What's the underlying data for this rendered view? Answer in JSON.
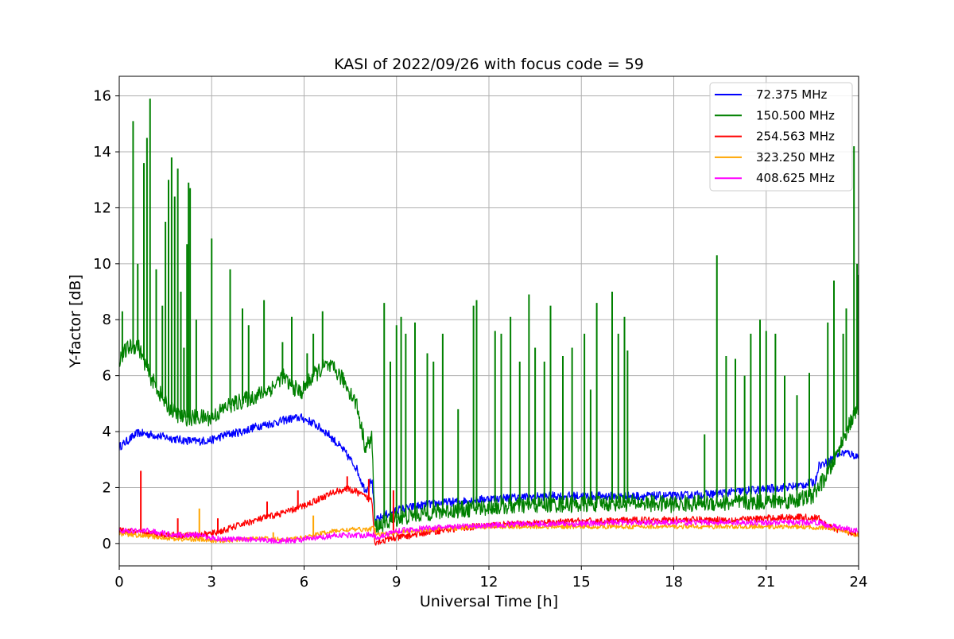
{
  "chart_data": {
    "type": "line",
    "title": "KASI of 2022/09/26 with focus code = 59",
    "xlabel": "Universal Time [h]",
    "ylabel": "Y-factor [dB]",
    "xlim": [
      0,
      24
    ],
    "ylim": [
      -0.8,
      16.7
    ],
    "xticks": [
      0,
      3,
      6,
      9,
      12,
      15,
      18,
      21,
      24
    ],
    "yticks": [
      0,
      2,
      4,
      6,
      8,
      10,
      12,
      14,
      16
    ],
    "grid": true,
    "legend_position": "top-right",
    "series": [
      {
        "name": "72.375 MHz",
        "color": "#0000ff",
        "band": 0.15,
        "points": [
          [
            0,
            3.45
          ],
          [
            0.3,
            3.7
          ],
          [
            0.6,
            3.95
          ],
          [
            1.0,
            3.9
          ],
          [
            1.5,
            3.8
          ],
          [
            2.0,
            3.7
          ],
          [
            2.5,
            3.65
          ],
          [
            3.0,
            3.7
          ],
          [
            3.5,
            3.9
          ],
          [
            4.0,
            4.0
          ],
          [
            4.5,
            4.2
          ],
          [
            5.0,
            4.3
          ],
          [
            5.5,
            4.45
          ],
          [
            5.9,
            4.5
          ],
          [
            6.3,
            4.3
          ],
          [
            6.8,
            3.9
          ],
          [
            7.3,
            3.3
          ],
          [
            7.7,
            2.7
          ],
          [
            7.9,
            2.1
          ],
          [
            8.0,
            1.9
          ],
          [
            8.2,
            2.3
          ],
          [
            8.3,
            0.8
          ],
          [
            8.6,
            1.0
          ],
          [
            9.0,
            1.2
          ],
          [
            10.0,
            1.4
          ],
          [
            11.0,
            1.5
          ],
          [
            12.0,
            1.6
          ],
          [
            13.0,
            1.65
          ],
          [
            14.0,
            1.7
          ],
          [
            15.0,
            1.7
          ],
          [
            16.0,
            1.7
          ],
          [
            17.0,
            1.7
          ],
          [
            18.0,
            1.7
          ],
          [
            19.0,
            1.75
          ],
          [
            20.0,
            1.85
          ],
          [
            21.0,
            1.95
          ],
          [
            22.0,
            2.05
          ],
          [
            22.6,
            2.2
          ],
          [
            22.7,
            2.8
          ],
          [
            23.0,
            2.9
          ],
          [
            23.3,
            3.2
          ],
          [
            23.6,
            3.25
          ],
          [
            24.0,
            3.1
          ]
        ]
      },
      {
        "name": "150.500 MHz",
        "color": "#008000",
        "band": 0.3,
        "points": [
          [
            0,
            6.6
          ],
          [
            0.3,
            7.0
          ],
          [
            0.6,
            7.1
          ],
          [
            1.0,
            6.0
          ],
          [
            1.5,
            5.0
          ],
          [
            2.0,
            4.5
          ],
          [
            2.5,
            4.5
          ],
          [
            3.0,
            4.5
          ],
          [
            3.5,
            4.9
          ],
          [
            4.0,
            5.1
          ],
          [
            4.5,
            5.3
          ],
          [
            5.0,
            5.6
          ],
          [
            5.3,
            6.0
          ],
          [
            5.5,
            5.7
          ],
          [
            5.9,
            5.4
          ],
          [
            6.3,
            6.0
          ],
          [
            6.7,
            6.35
          ],
          [
            7.0,
            6.2
          ],
          [
            7.3,
            5.8
          ],
          [
            7.7,
            5.0
          ],
          [
            8.0,
            3.4
          ],
          [
            8.2,
            3.8
          ],
          [
            8.3,
            0.6
          ],
          [
            9.0,
            0.9
          ],
          [
            10.0,
            1.1
          ],
          [
            11.0,
            1.2
          ],
          [
            12.0,
            1.3
          ],
          [
            13.0,
            1.35
          ],
          [
            14.0,
            1.4
          ],
          [
            15.0,
            1.4
          ],
          [
            16.0,
            1.45
          ],
          [
            17.0,
            1.45
          ],
          [
            18.0,
            1.4
          ],
          [
            19.0,
            1.45
          ],
          [
            20.0,
            1.45
          ],
          [
            21.0,
            1.5
          ],
          [
            22.0,
            1.55
          ],
          [
            22.5,
            1.7
          ],
          [
            23.0,
            2.5
          ],
          [
            23.3,
            3.2
          ],
          [
            23.6,
            4.0
          ],
          [
            24.0,
            4.9
          ]
        ],
        "spikes": [
          [
            0.1,
            8.3
          ],
          [
            0.45,
            15.1
          ],
          [
            0.6,
            10.0
          ],
          [
            0.8,
            13.6
          ],
          [
            0.9,
            14.5
          ],
          [
            1.0,
            15.9
          ],
          [
            1.2,
            9.8
          ],
          [
            1.4,
            8.5
          ],
          [
            1.5,
            11.5
          ],
          [
            1.6,
            13.0
          ],
          [
            1.7,
            13.8
          ],
          [
            1.8,
            12.4
          ],
          [
            1.9,
            13.4
          ],
          [
            2.0,
            9.0
          ],
          [
            2.1,
            7.0
          ],
          [
            2.2,
            10.7
          ],
          [
            2.25,
            12.9
          ],
          [
            2.3,
            12.7
          ],
          [
            2.5,
            8.0
          ],
          [
            3.0,
            10.9
          ],
          [
            3.6,
            9.8
          ],
          [
            4.0,
            8.4
          ],
          [
            4.2,
            7.8
          ],
          [
            4.7,
            8.7
          ],
          [
            5.3,
            7.2
          ],
          [
            5.6,
            8.1
          ],
          [
            6.1,
            6.8
          ],
          [
            6.3,
            7.5
          ],
          [
            6.6,
            8.3
          ],
          [
            8.6,
            8.6
          ],
          [
            8.8,
            6.5
          ],
          [
            9.0,
            7.8
          ],
          [
            9.15,
            8.1
          ],
          [
            9.3,
            7.5
          ],
          [
            9.6,
            7.9
          ],
          [
            10.0,
            6.8
          ],
          [
            10.2,
            6.5
          ],
          [
            10.5,
            7.5
          ],
          [
            11.0,
            4.8
          ],
          [
            11.5,
            8.5
          ],
          [
            11.6,
            8.7
          ],
          [
            12.2,
            7.6
          ],
          [
            12.4,
            7.5
          ],
          [
            12.7,
            8.1
          ],
          [
            13.0,
            6.5
          ],
          [
            13.3,
            8.9
          ],
          [
            13.5,
            7.0
          ],
          [
            13.8,
            6.5
          ],
          [
            14.0,
            8.5
          ],
          [
            14.4,
            6.7
          ],
          [
            14.7,
            7.0
          ],
          [
            15.1,
            7.5
          ],
          [
            15.3,
            5.5
          ],
          [
            15.5,
            8.6
          ],
          [
            16.0,
            9.0
          ],
          [
            16.2,
            7.5
          ],
          [
            16.4,
            8.1
          ],
          [
            16.5,
            6.9
          ],
          [
            19.0,
            3.9
          ],
          [
            19.4,
            10.3
          ],
          [
            19.7,
            6.7
          ],
          [
            20.0,
            6.6
          ],
          [
            20.3,
            6.0
          ],
          [
            20.5,
            7.5
          ],
          [
            20.8,
            8.0
          ],
          [
            21.0,
            7.6
          ],
          [
            21.3,
            7.5
          ],
          [
            21.6,
            6.0
          ],
          [
            22.0,
            5.3
          ],
          [
            22.4,
            6.1
          ],
          [
            23.0,
            7.9
          ],
          [
            23.2,
            9.4
          ],
          [
            23.5,
            7.5
          ],
          [
            23.6,
            8.4
          ],
          [
            23.85,
            14.2
          ],
          [
            23.95,
            10.0
          ],
          [
            23.99,
            9.6
          ]
        ]
      },
      {
        "name": "254.563 MHz",
        "color": "#ff0000",
        "band": 0.12,
        "points": [
          [
            0,
            0.45
          ],
          [
            0.5,
            0.4
          ],
          [
            1.0,
            0.35
          ],
          [
            1.5,
            0.3
          ],
          [
            2.0,
            0.3
          ],
          [
            2.5,
            0.3
          ],
          [
            3.0,
            0.35
          ],
          [
            3.5,
            0.5
          ],
          [
            4.0,
            0.7
          ],
          [
            4.5,
            0.85
          ],
          [
            5.0,
            1.0
          ],
          [
            5.5,
            1.15
          ],
          [
            6.0,
            1.35
          ],
          [
            6.5,
            1.6
          ],
          [
            7.0,
            1.85
          ],
          [
            7.4,
            1.95
          ],
          [
            7.7,
            1.85
          ],
          [
            8.0,
            1.65
          ],
          [
            8.2,
            1.55
          ],
          [
            8.3,
            0.05
          ],
          [
            9.0,
            0.2
          ],
          [
            10.0,
            0.4
          ],
          [
            11.0,
            0.55
          ],
          [
            12.0,
            0.65
          ],
          [
            13.0,
            0.7
          ],
          [
            14.0,
            0.75
          ],
          [
            15.0,
            0.8
          ],
          [
            16.0,
            0.8
          ],
          [
            17.0,
            0.85
          ],
          [
            18.0,
            0.85
          ],
          [
            19.0,
            0.85
          ],
          [
            20.0,
            0.85
          ],
          [
            21.0,
            0.9
          ],
          [
            22.0,
            0.95
          ],
          [
            22.7,
            0.9
          ],
          [
            23.0,
            0.6
          ],
          [
            23.5,
            0.45
          ],
          [
            24.0,
            0.35
          ]
        ],
        "spikes": [
          [
            0.7,
            2.6
          ],
          [
            1.9,
            0.9
          ],
          [
            3.2,
            0.9
          ],
          [
            4.8,
            1.5
          ],
          [
            5.8,
            1.9
          ],
          [
            7.4,
            2.4
          ],
          [
            8.1,
            2.3
          ],
          [
            8.9,
            1.9
          ]
        ]
      },
      {
        "name": "323.250 MHz",
        "color": "#ffa500",
        "band": 0.08,
        "points": [
          [
            0,
            0.35
          ],
          [
            0.5,
            0.3
          ],
          [
            1.0,
            0.25
          ],
          [
            1.5,
            0.2
          ],
          [
            2.0,
            0.15
          ],
          [
            2.5,
            0.15
          ],
          [
            3.0,
            0.1
          ],
          [
            3.5,
            0.1
          ],
          [
            4.0,
            0.15
          ],
          [
            4.5,
            0.2
          ],
          [
            5.0,
            0.15
          ],
          [
            5.5,
            0.15
          ],
          [
            6.0,
            0.2
          ],
          [
            6.5,
            0.35
          ],
          [
            7.0,
            0.45
          ],
          [
            7.5,
            0.5
          ],
          [
            8.0,
            0.5
          ],
          [
            8.3,
            0.55
          ],
          [
            8.35,
            0.3
          ],
          [
            9.0,
            0.4
          ],
          [
            10.0,
            0.5
          ],
          [
            11.0,
            0.55
          ],
          [
            12.0,
            0.6
          ],
          [
            13.0,
            0.6
          ],
          [
            14.0,
            0.6
          ],
          [
            15.0,
            0.6
          ],
          [
            16.0,
            0.6
          ],
          [
            17.0,
            0.6
          ],
          [
            18.0,
            0.6
          ],
          [
            19.0,
            0.6
          ],
          [
            20.0,
            0.6
          ],
          [
            21.0,
            0.6
          ],
          [
            22.0,
            0.6
          ],
          [
            23.0,
            0.55
          ],
          [
            23.5,
            0.45
          ],
          [
            24.0,
            0.3
          ]
        ],
        "spikes": [
          [
            2.6,
            1.25
          ],
          [
            6.3,
            1.0
          ],
          [
            5.0,
            0.4
          ]
        ]
      },
      {
        "name": "408.625 MHz",
        "color": "#ff00ff",
        "band": 0.1,
        "points": [
          [
            0,
            0.45
          ],
          [
            0.5,
            0.45
          ],
          [
            1.0,
            0.45
          ],
          [
            1.5,
            0.35
          ],
          [
            2.0,
            0.3
          ],
          [
            2.5,
            0.3
          ],
          [
            3.0,
            0.2
          ],
          [
            3.5,
            0.15
          ],
          [
            4.0,
            0.15
          ],
          [
            4.5,
            0.15
          ],
          [
            5.0,
            0.1
          ],
          [
            5.5,
            0.1
          ],
          [
            6.0,
            0.15
          ],
          [
            6.5,
            0.2
          ],
          [
            7.0,
            0.3
          ],
          [
            7.5,
            0.3
          ],
          [
            8.0,
            0.3
          ],
          [
            8.3,
            0.3
          ],
          [
            8.35,
            0.2
          ],
          [
            9.0,
            0.45
          ],
          [
            10.0,
            0.55
          ],
          [
            11.0,
            0.6
          ],
          [
            12.0,
            0.65
          ],
          [
            13.0,
            0.7
          ],
          [
            14.0,
            0.7
          ],
          [
            15.0,
            0.7
          ],
          [
            16.0,
            0.75
          ],
          [
            17.0,
            0.75
          ],
          [
            18.0,
            0.75
          ],
          [
            19.0,
            0.75
          ],
          [
            20.0,
            0.75
          ],
          [
            21.0,
            0.75
          ],
          [
            22.0,
            0.75
          ],
          [
            22.7,
            0.75
          ],
          [
            23.0,
            0.65
          ],
          [
            23.5,
            0.55
          ],
          [
            24.0,
            0.45
          ]
        ]
      }
    ]
  }
}
